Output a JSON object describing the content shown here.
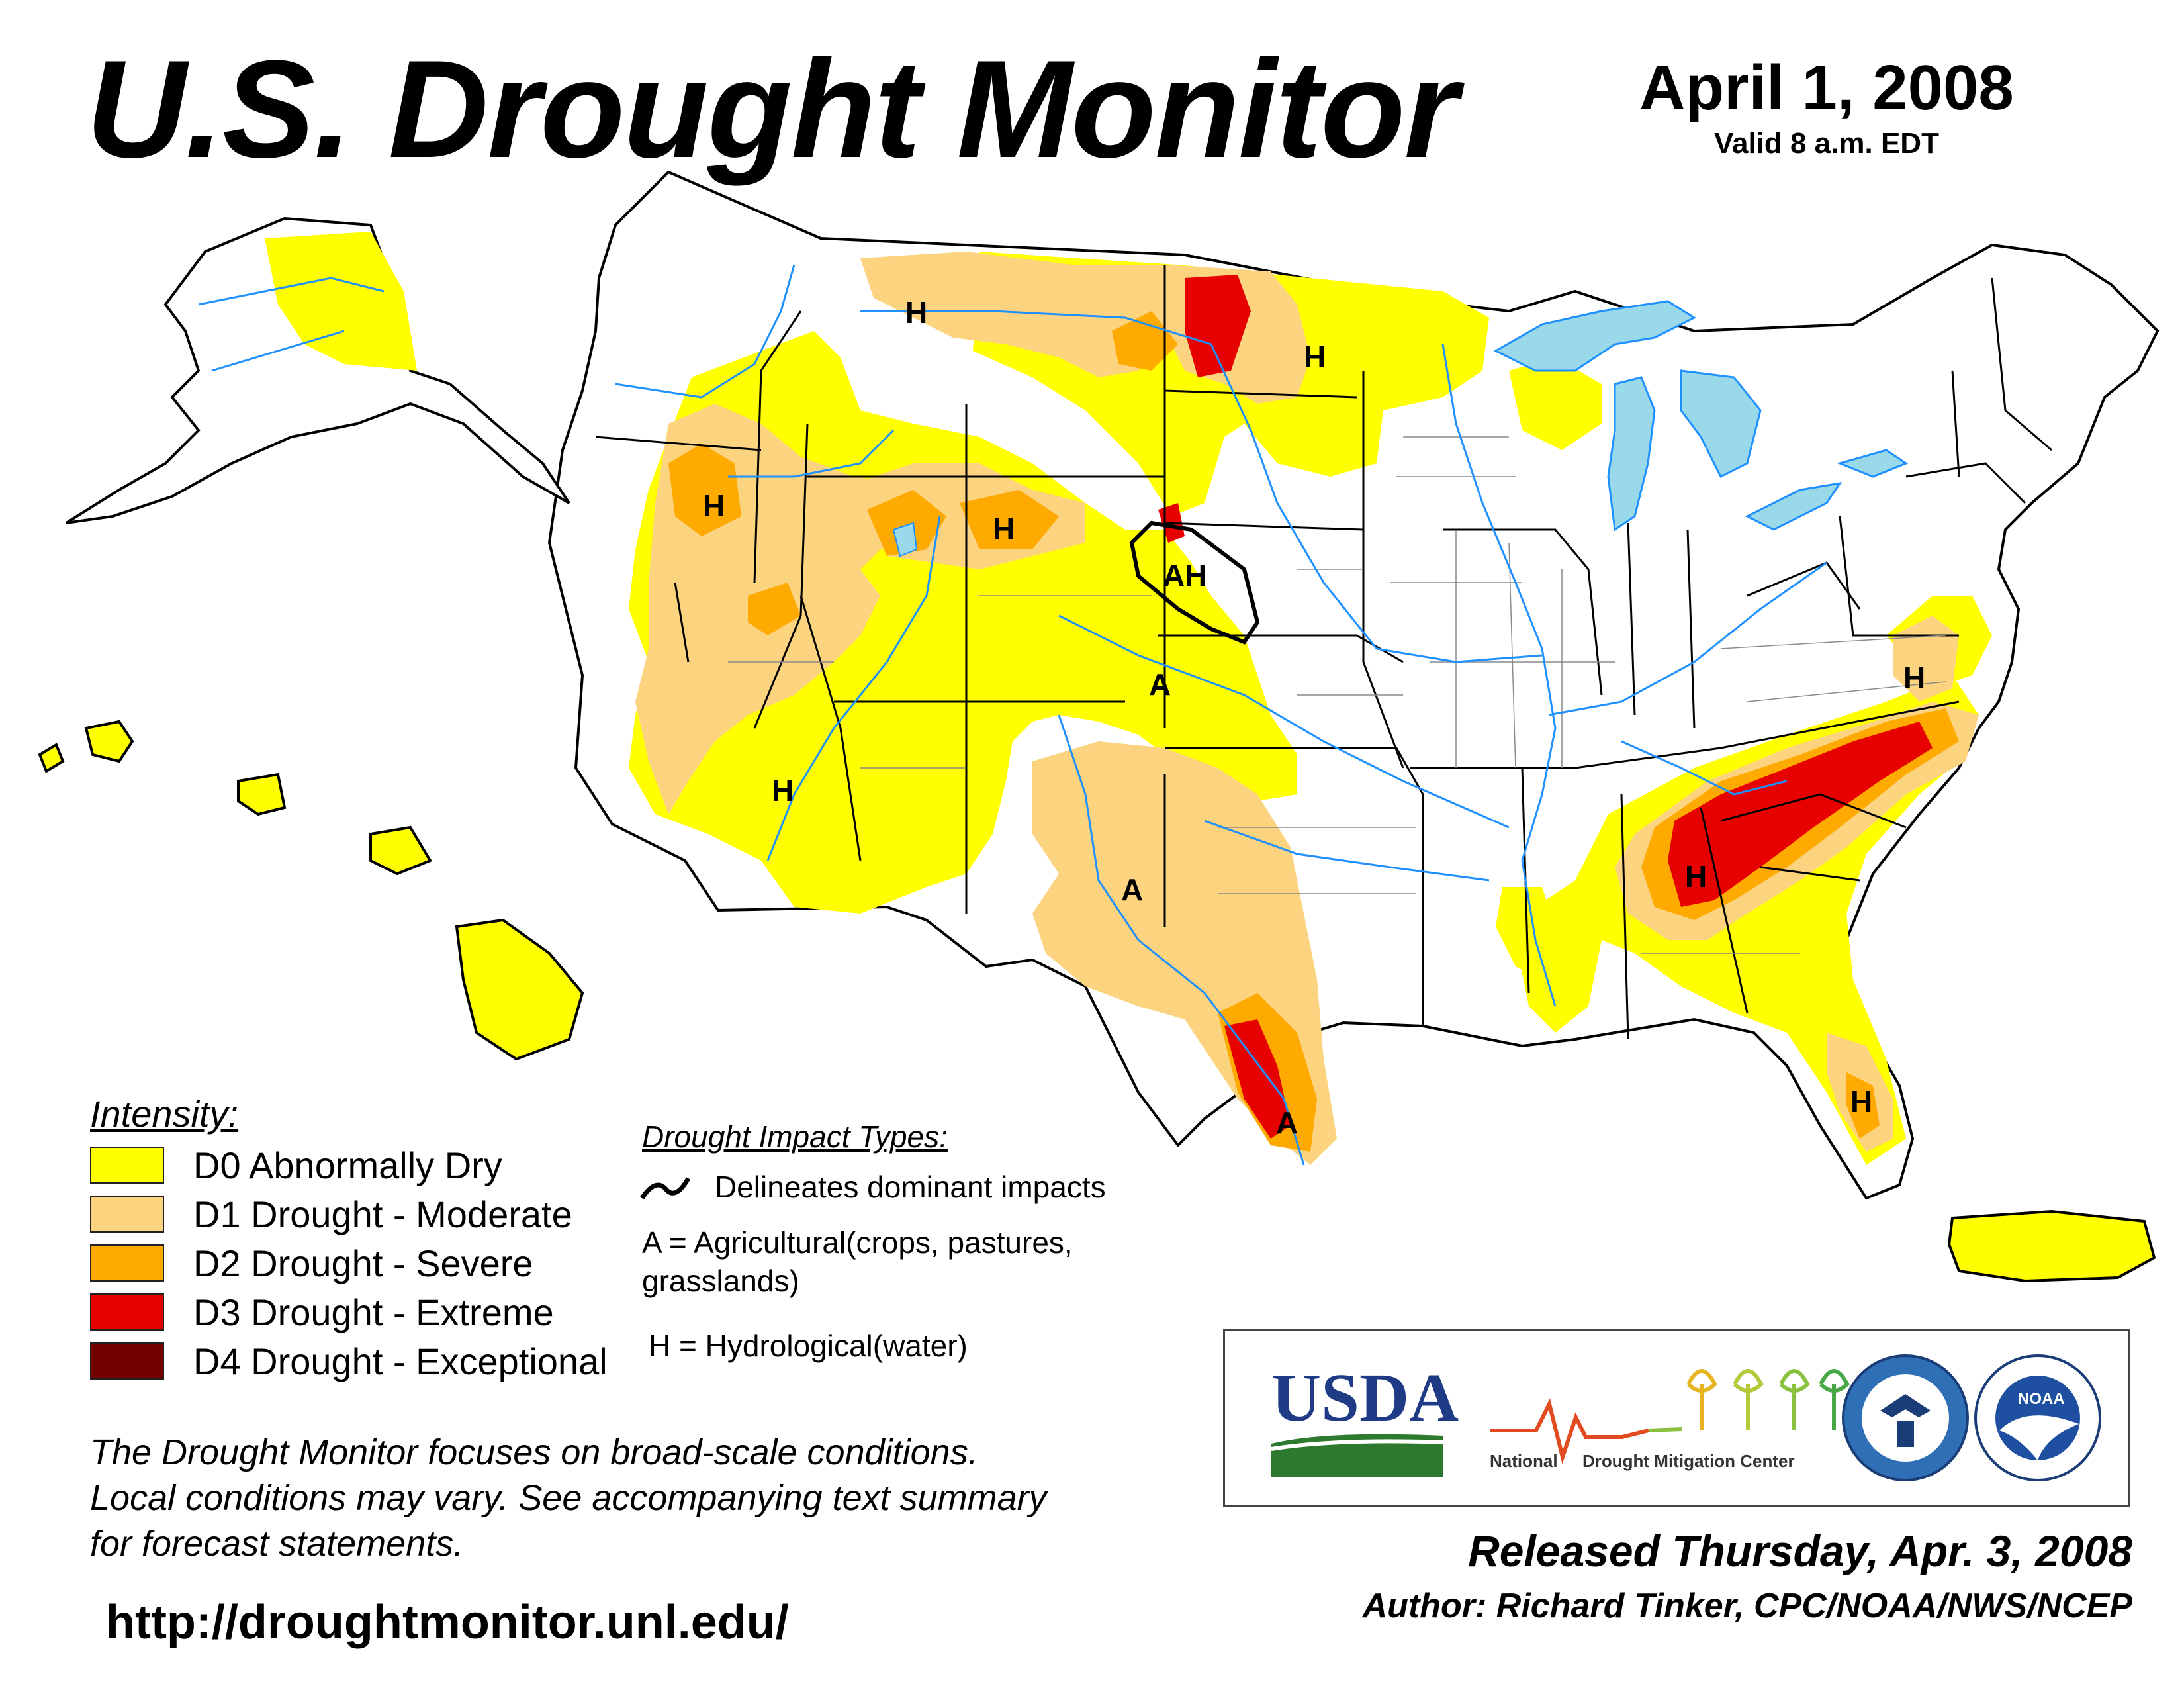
{
  "header": {
    "title": "U.S. Drought Monitor",
    "date": "April 1, 2008",
    "valid": "Valid 8 a.m. EDT"
  },
  "legend": {
    "title": "Intensity:",
    "items": [
      {
        "label": "D0 Abnormally Dry",
        "color": "#ffff00"
      },
      {
        "label": "D1 Drought - Moderate",
        "color": "#fcd37f"
      },
      {
        "label": "D2 Drought - Severe",
        "color": "#ffaa00"
      },
      {
        "label": "D3 Drought - Extreme",
        "color": "#e60000"
      },
      {
        "label": "D4 Drought - Exceptional",
        "color": "#730000"
      }
    ]
  },
  "impacts": {
    "title": "Drought Impact Types:",
    "delineates": "Delineates dominant impacts",
    "agricultural_line1": "A = Agricultural(crops, pastures,",
    "agricultural_line2": "grasslands)",
    "hydrological": "H = Hydrological(water)"
  },
  "map": {
    "label_A": "A",
    "label_H": "H",
    "label_AH": "AH",
    "water_color": "#99d9ea",
    "river_color": "#1e90ff",
    "boundary_color": "#8a8a8a"
  },
  "disclaimer": {
    "line1": "The Drought Monitor focuses on broad-scale conditions.",
    "line2": "Local conditions may vary. See accompanying text summary",
    "line3": "for forecast statements."
  },
  "url": "http://droughtmonitor.unl.edu/",
  "logos": {
    "usda": "USDA",
    "ndmc_line1": "National",
    "ndmc_line2": "Drought Mitigation Center",
    "noaa": "NOAA"
  },
  "footer": {
    "released": "Released Thursday, Apr. 3, 2008",
    "author": "Author: Richard Tinker, CPC/NOAA/NWS/NCEP"
  }
}
